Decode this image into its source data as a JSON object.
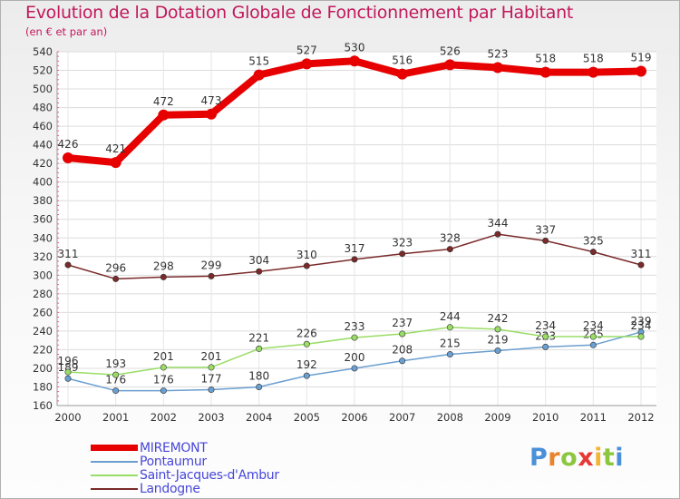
{
  "title": "Evolution de la Dotation Globale de Fonctionnement par Habitant",
  "subtitle": "(en € et par an)",
  "brand": {
    "letters": [
      "P",
      "r",
      "o",
      "x",
      "i",
      "t",
      "i"
    ],
    "colors": [
      "#4a90d9",
      "#e8842b",
      "#8cc63f",
      "#e53935",
      "#f2b632",
      "#8cc63f",
      "#4a90d9"
    ]
  },
  "chart_data": {
    "type": "line",
    "title": "Evolution de la Dotation Globale de Fonctionnement par Habitant",
    "ylabel": "(en € et par an)",
    "xlabel": "",
    "x": [
      "2000",
      "2001",
      "2002",
      "2003",
      "2004",
      "2005",
      "2006",
      "2007",
      "2008",
      "2009",
      "2010",
      "2011",
      "2012"
    ],
    "ylim": [
      160,
      540
    ],
    "yticks": [
      160,
      180,
      200,
      220,
      240,
      260,
      280,
      300,
      320,
      340,
      360,
      380,
      400,
      420,
      440,
      460,
      480,
      500,
      520,
      540
    ],
    "grid": true,
    "legend_position": "bottom-left",
    "series": [
      {
        "name": "MIREMONT",
        "color": "#e60000",
        "values": [
          426,
          421,
          472,
          473,
          515,
          527,
          530,
          516,
          526,
          523,
          518,
          518,
          519
        ],
        "labels": [
          "426",
          "421",
          "472",
          "473",
          "515",
          "527",
          "530",
          "516",
          "526",
          "523",
          "518",
          "518",
          "519"
        ],
        "emphasis": true
      },
      {
        "name": "Pontaumur",
        "color": "#6a9fd0",
        "values": [
          189,
          176,
          176,
          177,
          180,
          192,
          200,
          208,
          215,
          219,
          223,
          225,
          239
        ],
        "labels": [
          "189",
          "176",
          "176",
          "177",
          "180",
          "192",
          "200",
          "208",
          "215",
          "219",
          "223",
          "225",
          "239"
        ],
        "emphasis": false
      },
      {
        "name": "Saint-Jacques-d'Ambur",
        "color": "#99dd66",
        "values": [
          196,
          193,
          201,
          201,
          221,
          226,
          233,
          237,
          244,
          242,
          234,
          234,
          234
        ],
        "labels": [
          "196",
          "193",
          "201",
          "201",
          "221",
          "226",
          "233",
          "237",
          "244",
          "242",
          "234",
          "234",
          "234"
        ],
        "emphasis": false
      },
      {
        "name": "Landogne",
        "color": "#7a2a2a",
        "values": [
          311,
          296,
          298,
          299,
          304,
          310,
          317,
          323,
          328,
          344,
          337,
          325,
          311
        ],
        "labels": [
          "311",
          "296",
          "298",
          "299",
          "304",
          "310",
          "317",
          "323",
          "328",
          "344",
          "337",
          "325",
          "311"
        ],
        "emphasis": false
      }
    ]
  }
}
